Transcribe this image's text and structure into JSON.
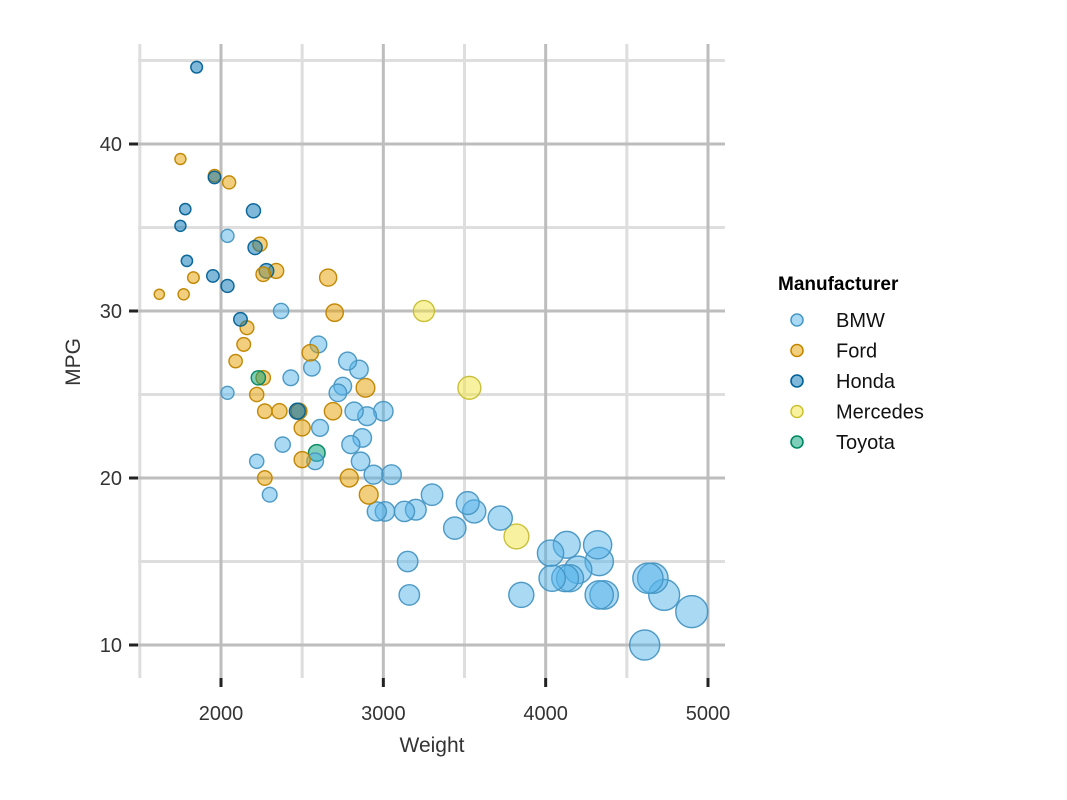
{
  "chart_data": {
    "type": "scatter",
    "xlabel": "Weight",
    "ylabel": "MPG",
    "xlim": [
      1500,
      5100
    ],
    "ylim": [
      8,
      46
    ],
    "x_ticks": [
      2000,
      3000,
      4000,
      5000
    ],
    "y_ticks": [
      10,
      20,
      30,
      40
    ],
    "grid": true,
    "size_encodes": "Weight",
    "legend": {
      "title": "Manufacturer",
      "position": "right"
    },
    "colors": {
      "BMW": "#56b4e9",
      "Ford": "#e69f00",
      "Honda": "#0072b2",
      "Mercedes": "#f0e442",
      "Toyota": "#009e73"
    },
    "series": [
      {
        "name": "BMW",
        "points": [
          [
            2040,
            34.5
          ],
          [
            2040,
            25.1
          ],
          [
            2220,
            21.0
          ],
          [
            2300,
            19.0
          ],
          [
            2370,
            30.0
          ],
          [
            2380,
            22.0
          ],
          [
            2430,
            26.0
          ],
          [
            2480,
            24.0
          ],
          [
            2560,
            26.6
          ],
          [
            2580,
            21.0
          ],
          [
            2600,
            28.0
          ],
          [
            2610,
            23.0
          ],
          [
            2720,
            25.1
          ],
          [
            2750,
            25.5
          ],
          [
            2780,
            27.0
          ],
          [
            2800,
            22.0
          ],
          [
            2820,
            24.0
          ],
          [
            2850,
            26.5
          ],
          [
            2860,
            21.0
          ],
          [
            2870,
            22.4
          ],
          [
            2900,
            23.7
          ],
          [
            2940,
            20.2
          ],
          [
            2960,
            18.0
          ],
          [
            3000,
            24.0
          ],
          [
            3010,
            18.0
          ],
          [
            3050,
            20.2
          ],
          [
            3130,
            18.0
          ],
          [
            3150,
            15.0
          ],
          [
            3160,
            13.0
          ],
          [
            3200,
            18.1
          ],
          [
            3300,
            19.0
          ],
          [
            3440,
            17.0
          ],
          [
            3520,
            18.5
          ],
          [
            3560,
            18.0
          ],
          [
            3720,
            17.6
          ],
          [
            3850,
            13.0
          ],
          [
            4030,
            15.5
          ],
          [
            4040,
            14.0
          ],
          [
            4120,
            14.0
          ],
          [
            4130,
            16.0
          ],
          [
            4150,
            14.0
          ],
          [
            4200,
            14.5
          ],
          [
            4320,
            16.0
          ],
          [
            4330,
            15.0
          ],
          [
            4330,
            13.0
          ],
          [
            4360,
            13.0
          ],
          [
            4610,
            10.0
          ],
          [
            4630,
            14.0
          ],
          [
            4660,
            14.0
          ],
          [
            4730,
            13.0
          ],
          [
            4900,
            12.0
          ]
        ]
      },
      {
        "name": "Ford",
        "points": [
          [
            1620,
            31.0
          ],
          [
            1750,
            39.1
          ],
          [
            1770,
            31.0
          ],
          [
            1830,
            32.0
          ],
          [
            1960,
            38.1
          ],
          [
            2050,
            37.7
          ],
          [
            2090,
            27.0
          ],
          [
            2140,
            28.0
          ],
          [
            2160,
            29.0
          ],
          [
            2220,
            25.0
          ],
          [
            2240,
            34.0
          ],
          [
            2260,
            26.0
          ],
          [
            2260,
            32.2
          ],
          [
            2270,
            24.0
          ],
          [
            2270,
            20.0
          ],
          [
            2340,
            32.4
          ],
          [
            2360,
            24.0
          ],
          [
            2480,
            24.0
          ],
          [
            2500,
            23.0
          ],
          [
            2500,
            21.1
          ],
          [
            2550,
            27.5
          ],
          [
            2660,
            32.0
          ],
          [
            2690,
            24.0
          ],
          [
            2700,
            29.9
          ],
          [
            2790,
            20.0
          ],
          [
            2890,
            25.4
          ],
          [
            2910,
            19.0
          ]
        ]
      },
      {
        "name": "Honda",
        "points": [
          [
            1850,
            44.6
          ],
          [
            1750,
            35.1
          ],
          [
            1780,
            36.1
          ],
          [
            1790,
            33.0
          ],
          [
            1950,
            32.1
          ],
          [
            1960,
            38.0
          ],
          [
            2040,
            31.5
          ],
          [
            2120,
            29.5
          ],
          [
            2200,
            36.0
          ],
          [
            2210,
            33.8
          ],
          [
            2280,
            32.4
          ],
          [
            2470,
            24.0
          ]
        ]
      },
      {
        "name": "Mercedes",
        "points": [
          [
            3250,
            30.0
          ],
          [
            3530,
            25.4
          ],
          [
            3820,
            16.5
          ]
        ]
      },
      {
        "name": "Toyota",
        "points": [
          [
            2230,
            26.0
          ],
          [
            2590,
            21.5
          ]
        ]
      }
    ]
  }
}
